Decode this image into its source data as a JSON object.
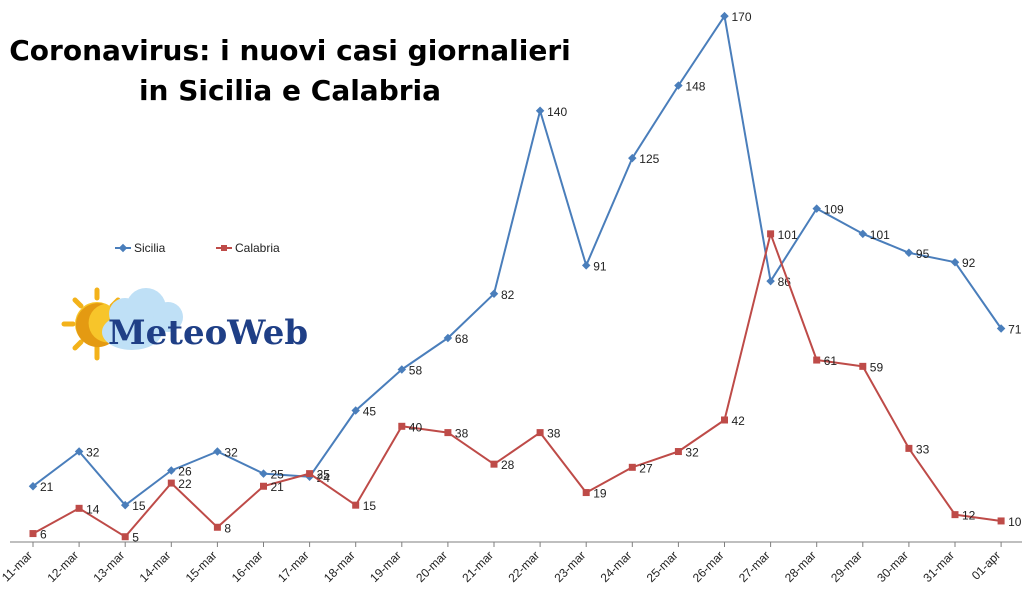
{
  "colors": {
    "sicilia": "#4a7ebb",
    "calabria": "#be4b48",
    "axis": "#7f7f7f"
  },
  "logo": {
    "text": "MeteoWeb"
  },
  "chart_data": {
    "type": "line",
    "title_line1": "Coronavirus: i nuovi casi giornalieri",
    "title_line2": "in Sicilia e Calabria",
    "xlabel": "",
    "ylabel": "",
    "ylim": [
      0,
      175
    ],
    "grid": false,
    "legend": "left-middle",
    "categories": [
      "11-mar",
      "12-mar",
      "13-mar",
      "14-mar",
      "15-mar",
      "16-mar",
      "17-mar",
      "18-mar",
      "19-mar",
      "20-mar",
      "21-mar",
      "22-mar",
      "23-mar",
      "24-mar",
      "25-mar",
      "26-mar",
      "27-mar",
      "28-mar",
      "29-mar",
      "30-mar",
      "31-mar",
      "01-apr"
    ],
    "series": [
      {
        "name": "Sicilia",
        "values": [
          21,
          32,
          15,
          26,
          32,
          25,
          24,
          45,
          58,
          68,
          82,
          140,
          91,
          125,
          148,
          170,
          86,
          109,
          101,
          95,
          92,
          71
        ]
      },
      {
        "name": "Calabria",
        "values": [
          6,
          14,
          5,
          22,
          8,
          21,
          25,
          15,
          40,
          38,
          28,
          38,
          19,
          27,
          32,
          42,
          101,
          61,
          59,
          33,
          12,
          10
        ]
      }
    ]
  }
}
